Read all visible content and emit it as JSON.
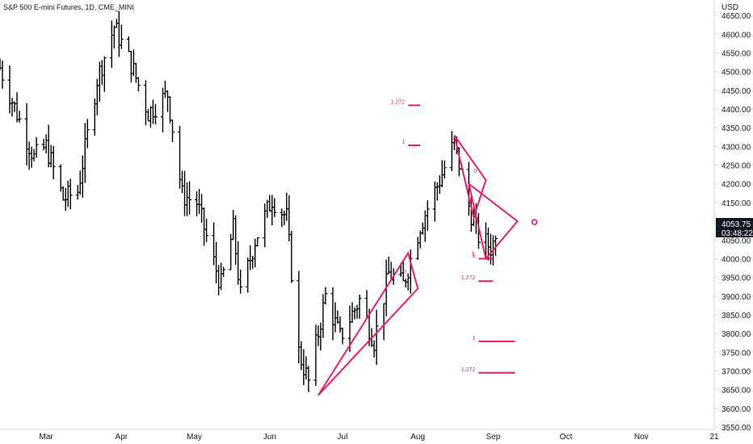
{
  "header": {
    "symbol_title": "S&P 500 E-mini Futures, 1D, CME_MINI"
  },
  "price_axis": {
    "currency": "USD"
  },
  "price_label": {
    "price": "4053.75",
    "countdown": "03:48:22"
  },
  "colors": {
    "bars": "#000000",
    "drawings": "#e91e63",
    "label_bg": "#131722",
    "axis_line": "#d1d4dc",
    "background": "#ffffff"
  },
  "chart_data": {
    "type": "ohlc",
    "title": "S&P 500 E-mini Futures, 1D, CME_MINI",
    "ylabel": "USD",
    "ylim": [
      3550,
      4700
    ],
    "grid": false,
    "y_ticks": [
      "3550.00",
      "3600.00",
      "3650.00",
      "3700.00",
      "3750.00",
      "3800.00",
      "3850.00",
      "3900.00",
      "3950.00",
      "4000.00",
      "4050.00",
      "4100.00",
      "4150.00",
      "4200.00",
      "4250.00",
      "4300.00",
      "4350.00",
      "4400.00",
      "4450.00",
      "4500.00",
      "4550.00",
      "4600.00",
      "4650.00"
    ],
    "x_ticks": [
      {
        "label": "Mar",
        "date": "2022-03-01"
      },
      {
        "label": "Apr",
        "date": "2022-04-01"
      },
      {
        "label": "May",
        "date": "2022-05-01"
      },
      {
        "label": "Jun",
        "date": "2022-06-01"
      },
      {
        "label": "Jul",
        "date": "2022-07-01"
      },
      {
        "label": "Aug",
        "date": "2022-08-01"
      },
      {
        "label": "Sep",
        "date": "2022-09-01"
      },
      {
        "label": "Oct",
        "date": "2022-10-01"
      },
      {
        "label": "Nov",
        "date": "2022-11-01"
      },
      {
        "label": "21",
        "date": "2022-12-01"
      }
    ],
    "x_range": [
      "2022-02-10",
      "2022-12-01"
    ],
    "price_series_anchors": [
      {
        "date": "2022-02-10",
        "close": 4510
      },
      {
        "date": "2022-02-18",
        "close": 4370
      },
      {
        "date": "2022-02-24",
        "close": 4270
      },
      {
        "date": "2022-03-01",
        "close": 4300
      },
      {
        "date": "2022-03-08",
        "close": 4160
      },
      {
        "date": "2022-03-14",
        "close": 4180
      },
      {
        "date": "2022-03-22",
        "close": 4480
      },
      {
        "date": "2022-03-29",
        "close": 4620
      },
      {
        "date": "2022-04-05",
        "close": 4520
      },
      {
        "date": "2022-04-12",
        "close": 4390
      },
      {
        "date": "2022-04-20",
        "close": 4440
      },
      {
        "date": "2022-04-26",
        "close": 4170
      },
      {
        "date": "2022-05-02",
        "close": 4150
      },
      {
        "date": "2022-05-09",
        "close": 3990
      },
      {
        "date": "2022-05-12",
        "close": 3930
      },
      {
        "date": "2022-05-17",
        "close": 4080
      },
      {
        "date": "2022-05-20",
        "close": 3900
      },
      {
        "date": "2022-05-26",
        "close": 4050
      },
      {
        "date": "2022-06-02",
        "close": 4160
      },
      {
        "date": "2022-06-08",
        "close": 4110
      },
      {
        "date": "2022-06-13",
        "close": 3750
      },
      {
        "date": "2022-06-17",
        "close": 3670
      },
      {
        "date": "2022-06-24",
        "close": 3900
      },
      {
        "date": "2022-06-30",
        "close": 3790
      },
      {
        "date": "2022-07-08",
        "close": 3890
      },
      {
        "date": "2022-07-14",
        "close": 3780
      },
      {
        "date": "2022-07-20",
        "close": 3960
      },
      {
        "date": "2022-07-26",
        "close": 3930
      },
      {
        "date": "2022-08-02",
        "close": 4090
      },
      {
        "date": "2022-08-10",
        "close": 4210
      },
      {
        "date": "2022-08-16",
        "close": 4310
      },
      {
        "date": "2022-08-22",
        "close": 4140
      },
      {
        "date": "2022-08-26",
        "close": 4060
      },
      {
        "date": "2022-08-31",
        "close": 4030
      },
      {
        "date": "2022-09-02",
        "close": 4053.75
      }
    ],
    "drawings": [
      {
        "type": "triangle",
        "points": [
          {
            "date": "2022-06-21",
            "price": 3635
          },
          {
            "date": "2022-07-28",
            "price": 4015
          },
          {
            "date": "2022-08-01",
            "price": 3920
          }
        ]
      },
      {
        "type": "triangle",
        "points": [
          {
            "date": "2022-08-16",
            "price": 4330
          },
          {
            "date": "2022-08-24",
            "price": 4110
          },
          {
            "date": "2022-08-29",
            "price": 4210
          }
        ]
      },
      {
        "type": "triangle",
        "points": [
          {
            "date": "2022-08-22",
            "price": 4200
          },
          {
            "date": "2022-08-29",
            "price": 4000
          },
          {
            "date": "2022-09-11",
            "price": 4100
          }
        ]
      },
      {
        "type": "circle",
        "point": {
          "date": "2022-09-18",
          "price": 4098
        }
      }
    ],
    "fib_levels": [
      {
        "label": "1.272",
        "price": 4410,
        "from": "2022-07-28",
        "to": "2022-08-02"
      },
      {
        "label": "1",
        "price": 4303,
        "from": "2022-07-28",
        "to": "2022-08-02"
      },
      {
        "label": "1",
        "price": 4000,
        "from": "2022-08-26",
        "to": "2022-09-01"
      },
      {
        "label": "1.272",
        "price": 3940,
        "from": "2022-08-26",
        "to": "2022-09-01"
      },
      {
        "label": "1",
        "price": 3779,
        "from": "2022-08-26",
        "to": "2022-09-10"
      },
      {
        "label": "1.272",
        "price": 3695,
        "from": "2022-08-26",
        "to": "2022-09-10"
      }
    ],
    "annotations": [
      "0",
      "0",
      "0",
      "1"
    ]
  }
}
